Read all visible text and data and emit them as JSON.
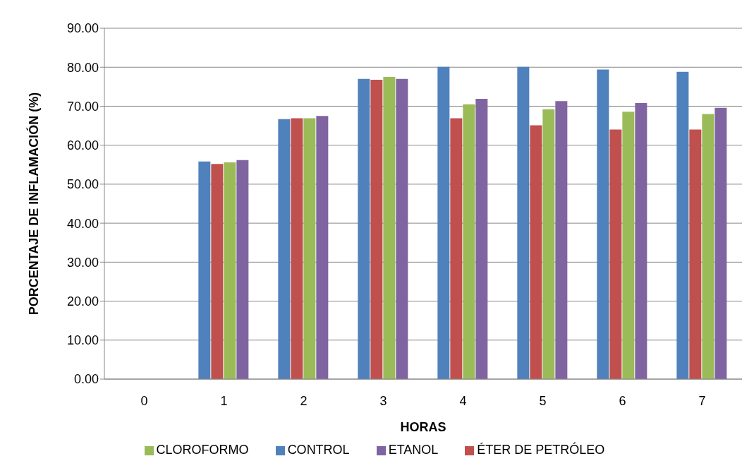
{
  "chart_data": {
    "type": "bar",
    "xlabel": "HORAS",
    "ylabel": "PORCENTAJE DE INFLAMACIÓN (%)",
    "categories": [
      "0",
      "1",
      "2",
      "3",
      "4",
      "5",
      "6",
      "7"
    ],
    "series": [
      {
        "name": "CONTROL",
        "color": "#4f81bd",
        "values": [
          0,
          55.8,
          66.7,
          77.0,
          80.1,
          80.1,
          79.4,
          78.8
        ]
      },
      {
        "name": "ÉTER DE PETRÓLEO",
        "color": "#c0504d",
        "values": [
          0,
          55.2,
          66.9,
          76.8,
          66.9,
          65.1,
          64.0,
          64.0
        ]
      },
      {
        "name": "CLOROFORMO",
        "color": "#9bbb59",
        "values": [
          0,
          55.6,
          66.9,
          77.5,
          70.5,
          69.2,
          68.6,
          68.0
        ]
      },
      {
        "name": "ETANOL",
        "color": "#8064a2",
        "values": [
          0,
          56.2,
          67.5,
          77.0,
          71.9,
          71.3,
          70.8,
          69.6
        ]
      }
    ],
    "ylim": [
      0,
      90
    ],
    "yticks": [
      {
        "value": 0,
        "label": "0.00"
      },
      {
        "value": 10,
        "label": "10.00"
      },
      {
        "value": 20,
        "label": "20.00"
      },
      {
        "value": 30,
        "label": "30.00"
      },
      {
        "value": 40,
        "label": "40.00"
      },
      {
        "value": 50,
        "label": "50.00"
      },
      {
        "value": 60,
        "label": "60.00"
      },
      {
        "value": 70,
        "label": "70.00"
      },
      {
        "value": 80,
        "label": "80.00"
      },
      {
        "value": 90,
        "label": "90.00"
      }
    ],
    "grid": "y",
    "legend": "bottom"
  }
}
